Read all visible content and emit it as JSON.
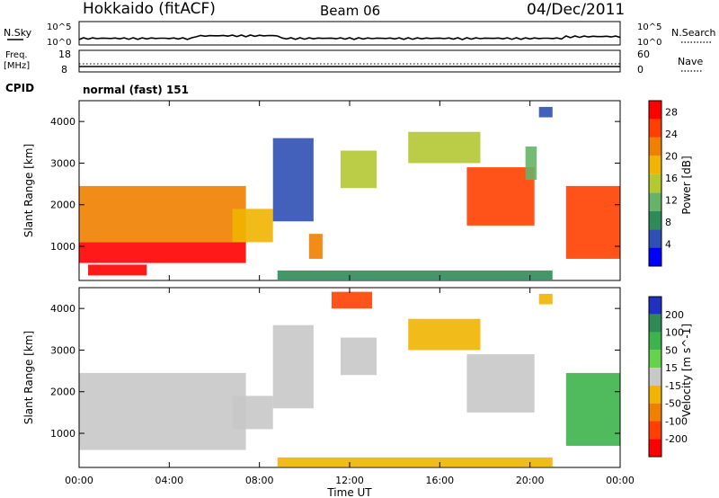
{
  "header": {
    "title": "Hokkaido (fitACF)",
    "beam": "Beam 06",
    "date": "04/Dec/2011"
  },
  "strip": {
    "nsky_label": "N.Sky",
    "nsky_ticks": [
      "10^5",
      "10^0"
    ],
    "nsearch_label": "N.Search",
    "nsearch_ticks": [
      "10^5",
      "10^0"
    ],
    "freq_label_1": "Freq.",
    "freq_label_2": "[MHz]",
    "freq_ticks": [
      "18",
      "8"
    ],
    "nave_label": "Nave",
    "nave_ticks": [
      "60",
      "0"
    ],
    "cpid_label": "CPID",
    "cpid_value": "normal (fast) 151"
  },
  "chart_data": [
    {
      "type": "heatmap",
      "name": "power",
      "xlabel": "Time UT",
      "ylabel": "Slant Range [km]",
      "x_ticks": [
        "00:00",
        "04:00",
        "08:00",
        "12:00",
        "16:00",
        "20:00",
        "00:00"
      ],
      "y_ticks": [
        1000,
        2000,
        3000,
        4000
      ],
      "xlim_hours": [
        0,
        24
      ],
      "ylim_km": [
        180,
        4500
      ],
      "colorbar": {
        "label": "Power [dB]",
        "ticks": [
          4,
          8,
          12,
          16,
          20,
          24,
          28
        ],
        "range": [
          0,
          30
        ],
        "colors": [
          "#0000ff",
          "#2f4fb4",
          "#2e8b57",
          "#66b266",
          "#b4c832",
          "#f0b400",
          "#f08000",
          "#ff4000",
          "#ff0000"
        ]
      },
      "regions": [
        {
          "t0": 0.0,
          "t1": 7.4,
          "r0": 600,
          "r1": 1100,
          "level": 27
        },
        {
          "t0": 0.0,
          "t1": 7.4,
          "r0": 1100,
          "r1": 2450,
          "level": 23
        },
        {
          "t0": 0.4,
          "t1": 3.0,
          "r0": 300,
          "r1": 560,
          "level": 27
        },
        {
          "t0": 6.8,
          "t1": 8.6,
          "r0": 1100,
          "r1": 1900,
          "level": 17
        },
        {
          "t0": 8.6,
          "t1": 10.4,
          "r0": 1600,
          "r1": 3600,
          "level": 6
        },
        {
          "t0": 10.2,
          "t1": 10.8,
          "r0": 700,
          "r1": 1300,
          "level": 22
        },
        {
          "t0": 11.6,
          "t1": 13.2,
          "r0": 2400,
          "r1": 3300,
          "level": 16
        },
        {
          "t0": 14.6,
          "t1": 17.8,
          "r0": 3000,
          "r1": 3750,
          "level": 15
        },
        {
          "t0": 17.2,
          "t1": 20.2,
          "r0": 1500,
          "r1": 2900,
          "level": 24
        },
        {
          "t0": 19.8,
          "t1": 20.3,
          "r0": 2600,
          "r1": 3400,
          "level": 13
        },
        {
          "t0": 21.6,
          "t1": 24.0,
          "r0": 700,
          "r1": 2450,
          "level": 25
        },
        {
          "t0": 20.4,
          "t1": 21.0,
          "r0": 4100,
          "r1": 4350,
          "level": 5
        },
        {
          "t0": 8.8,
          "t1": 21.0,
          "r0": 200,
          "r1": 420,
          "level": 9
        }
      ]
    },
    {
      "type": "heatmap",
      "name": "velocity",
      "xlabel": "Time UT",
      "ylabel": "Slant Range [km]",
      "x_ticks": [
        "00:00",
        "04:00",
        "08:00",
        "12:00",
        "16:00",
        "20:00",
        "00:00"
      ],
      "y_ticks": [
        1000,
        2000,
        3000,
        4000
      ],
      "xlim_hours": [
        0,
        24
      ],
      "ylim_km": [
        180,
        4500
      ],
      "colorbar": {
        "label": "Velocity [m s^-1]",
        "ticks": [
          "200",
          "100",
          "50",
          "15",
          "-15",
          "-50",
          "-100",
          "-200"
        ],
        "colors": [
          "#2030c0",
          "#2e8b57",
          "#3cb44b",
          "#66d24b",
          "#c8c8c8",
          "#f0b400",
          "#f08000",
          "#ff4000",
          "#ff0000"
        ]
      },
      "regions": [
        {
          "t0": 0.0,
          "t1": 7.4,
          "r0": 600,
          "r1": 2450,
          "value": 0
        },
        {
          "t0": 6.8,
          "t1": 8.6,
          "r0": 1100,
          "r1": 1900,
          "value": 0
        },
        {
          "t0": 8.6,
          "t1": 10.4,
          "r0": 1600,
          "r1": 3600,
          "value": 0
        },
        {
          "t0": 11.6,
          "t1": 13.2,
          "r0": 2400,
          "r1": 3300,
          "value": 0
        },
        {
          "t0": 14.6,
          "t1": 17.8,
          "r0": 3000,
          "r1": 3750,
          "value": -40
        },
        {
          "t0": 17.2,
          "t1": 20.2,
          "r0": 1500,
          "r1": 2900,
          "value": 0
        },
        {
          "t0": 21.6,
          "t1": 24.0,
          "r0": 700,
          "r1": 2450,
          "value": 60
        },
        {
          "t0": 8.8,
          "t1": 21.0,
          "r0": 200,
          "r1": 420,
          "value": -40
        },
        {
          "t0": 11.2,
          "t1": 13.0,
          "r0": 4000,
          "r1": 4400,
          "value": -150
        },
        {
          "t0": 20.4,
          "t1": 21.0,
          "r0": 4100,
          "r1": 4350,
          "value": -40
        }
      ]
    }
  ]
}
